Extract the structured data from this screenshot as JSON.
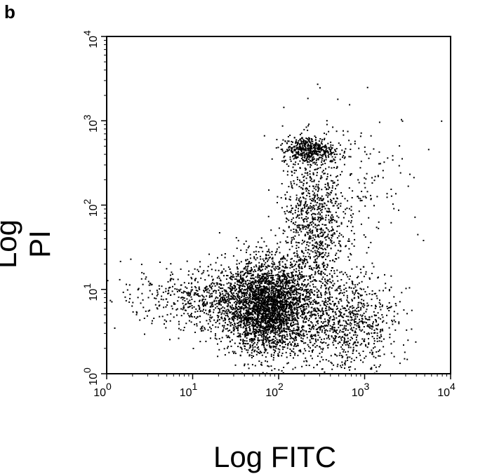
{
  "panel_label": "b",
  "chart_data": {
    "type": "scatter",
    "xlabel": "Log FITC",
    "ylabel": "Log PI",
    "xscale": "log",
    "yscale": "log",
    "xlim": [
      1,
      10000
    ],
    "ylim": [
      1,
      10000
    ],
    "x_ticks": [
      {
        "value": 1,
        "base": "10",
        "exp": "0"
      },
      {
        "value": 10,
        "base": "10",
        "exp": "1"
      },
      {
        "value": 100,
        "base": "10",
        "exp": "2"
      },
      {
        "value": 1000,
        "base": "10",
        "exp": "3"
      },
      {
        "value": 10000,
        "base": "10",
        "exp": "4"
      }
    ],
    "y_ticks": [
      {
        "value": 1,
        "base": "10",
        "exp": "0"
      },
      {
        "value": 10,
        "base": "10",
        "exp": "1"
      },
      {
        "value": 100,
        "base": "10",
        "exp": "2"
      },
      {
        "value": 1000,
        "base": "10",
        "exp": "3"
      },
      {
        "value": 10000,
        "base": "10",
        "exp": "4"
      }
    ],
    "grid": false,
    "point_color": "#000000",
    "populations": [
      {
        "cx": 80,
        "cy": 6,
        "sx": 0.25,
        "sy": 0.28,
        "count": 2600
      },
      {
        "cx": 40,
        "cy": 7,
        "sx": 0.35,
        "sy": 0.25,
        "count": 900
      },
      {
        "cx": 220,
        "cy": 450,
        "sx": 0.15,
        "sy": 0.08,
        "count": 450
      },
      {
        "cx": 260,
        "cy": 60,
        "sx": 0.18,
        "sy": 0.45,
        "count": 900
      },
      {
        "cx": 600,
        "cy": 4,
        "sx": 0.3,
        "sy": 0.3,
        "count": 900
      },
      {
        "cx": 8,
        "cy": 8,
        "sx": 0.5,
        "sy": 0.15,
        "count": 300
      },
      {
        "cx": 800,
        "cy": 200,
        "sx": 0.4,
        "sy": 0.4,
        "count": 180
      }
    ]
  }
}
